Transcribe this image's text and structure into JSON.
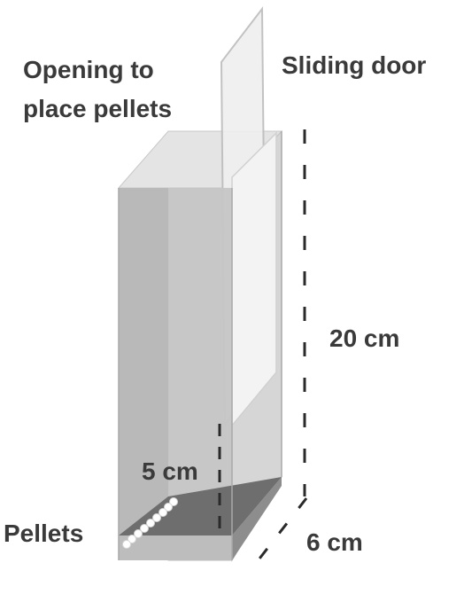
{
  "labels": {
    "opening_line1": "Opening to",
    "opening_line2": "place pellets",
    "sliding_door": "Sliding door",
    "height": "20 cm",
    "pellet_length": "5 cm",
    "pellets": "Pellets",
    "depth": "6 cm"
  }
}
